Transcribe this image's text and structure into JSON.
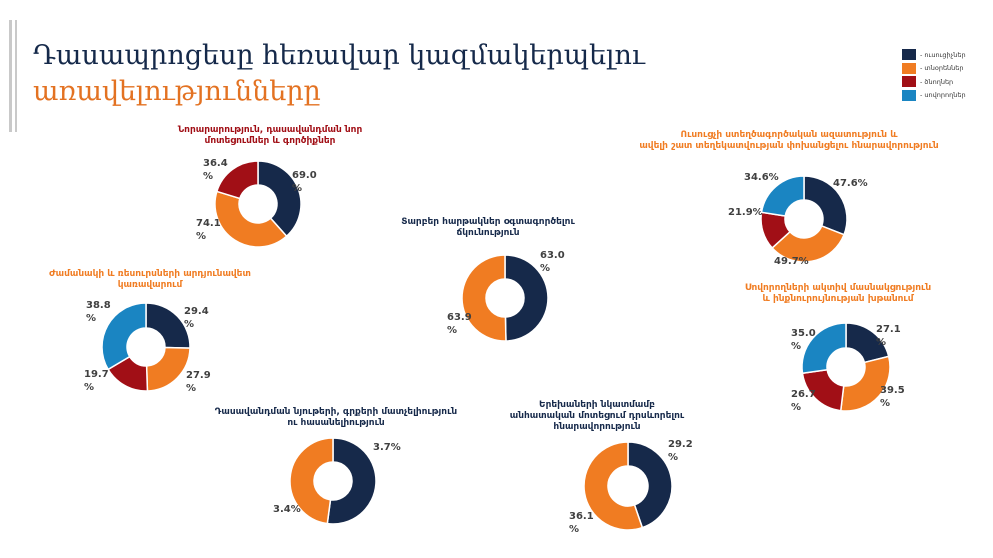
{
  "page": {
    "title_line1": "Դասապրոցեսը հեռավար կազմակերպելու",
    "title_line2": "առավելությունները"
  },
  "legend": [
    {
      "label": "- ուսուցիչներ",
      "color": "#16294a"
    },
    {
      "label": "- տնօրեններ",
      "color": "#f07c22"
    },
    {
      "label": "- ծնողներ",
      "color": "#a10f16"
    },
    {
      "label": "- սովորողներ",
      "color": "#1a85c2"
    }
  ],
  "colors": {
    "teachers": "#16294a",
    "directors": "#f07c22",
    "parents": "#a10f16",
    "students": "#1a85c2"
  },
  "chart_data": [
    {
      "type": "pie",
      "title": [
        "Նորարարություն, դասավանդման նոր",
        "մոտեցումներ և գործիքներ"
      ],
      "title_color": "#a10f16",
      "series": [
        {
          "group": "teachers",
          "value": 69.0,
          "label": [
            "69.0",
            "%"
          ]
        },
        {
          "group": "directors",
          "value": 74.1,
          "label": [
            "74.1",
            "%"
          ]
        },
        {
          "group": "parents",
          "value": 36.4,
          "label": [
            "36.4",
            "%"
          ]
        }
      ]
    },
    {
      "type": "pie",
      "title": [
        "Ժամանակի և ռեսուրսների արդյունավետ",
        "կառավարում"
      ],
      "title_color": "#f07c22",
      "series": [
        {
          "group": "teachers",
          "value": 29.4,
          "label": [
            "29.4",
            "%"
          ]
        },
        {
          "group": "directors",
          "value": 27.9,
          "label": [
            "27.9",
            "%"
          ]
        },
        {
          "group": "parents",
          "value": 19.7,
          "label": [
            "19.7",
            "%"
          ]
        },
        {
          "group": "students",
          "value": 38.8,
          "label": [
            "38.8",
            "%"
          ]
        }
      ]
    },
    {
      "type": "pie",
      "title": [
        "Տարբեր հարթակներ օգտագործելու",
        "ճկունություն"
      ],
      "title_color": "#16294a",
      "series": [
        {
          "group": "teachers",
          "value": 63.0,
          "label": [
            "63.0",
            "%"
          ]
        },
        {
          "group": "directors",
          "value": 63.9,
          "label": [
            "63.9",
            "%"
          ]
        }
      ]
    },
    {
      "type": "pie",
      "title": [
        "Դասավանդման նյութերի, գրքերի մատչելիություն",
        "ու հասանելիություն"
      ],
      "title_color": "#16294a",
      "series": [
        {
          "group": "teachers",
          "value": 3.7,
          "label": [
            "3.7%"
          ]
        },
        {
          "group": "directors",
          "value": 3.4,
          "label": [
            "3.4%"
          ]
        }
      ]
    },
    {
      "type": "pie",
      "title": [
        "Երեխաների նկատմամբ",
        "անհատական մոտեցում դրսևորելու",
        "հնարավորություն"
      ],
      "title_color": "#16294a",
      "series": [
        {
          "group": "teachers",
          "value": 29.2,
          "label": [
            "29.2",
            "%"
          ]
        },
        {
          "group": "directors",
          "value": 36.1,
          "label": [
            "36.1",
            "%"
          ]
        }
      ]
    },
    {
      "type": "pie",
      "title": [
        "Ուսուցչի ստեղծագործական ազատություն և",
        "ավելի շատ տեղեկատվության փոխանցելու հնարավորություն"
      ],
      "title_color": "#f07c22",
      "series": [
        {
          "group": "teachers",
          "value": 47.6,
          "label": [
            "47.6%"
          ]
        },
        {
          "group": "directors",
          "value": 49.7,
          "label": [
            "49.7%"
          ]
        },
        {
          "group": "parents",
          "value": 21.9,
          "label": [
            "21.9%"
          ]
        },
        {
          "group": "students",
          "value": 34.6,
          "label": [
            "34.6%"
          ]
        }
      ]
    },
    {
      "type": "pie",
      "title": [
        "Սովորողների ակտիվ մասնակցություն",
        "և ինքնուրույնության խթանում"
      ],
      "title_color": "#f07c22",
      "series": [
        {
          "group": "teachers",
          "value": 27.1,
          "label": [
            "27.1",
            "%"
          ]
        },
        {
          "group": "directors",
          "value": 39.5,
          "label": [
            "39.5",
            "%"
          ]
        },
        {
          "group": "parents",
          "value": 26.7,
          "label": [
            "26.7",
            "%"
          ]
        },
        {
          "group": "students",
          "value": 35.0,
          "label": [
            "35.0",
            "%"
          ]
        }
      ]
    }
  ]
}
